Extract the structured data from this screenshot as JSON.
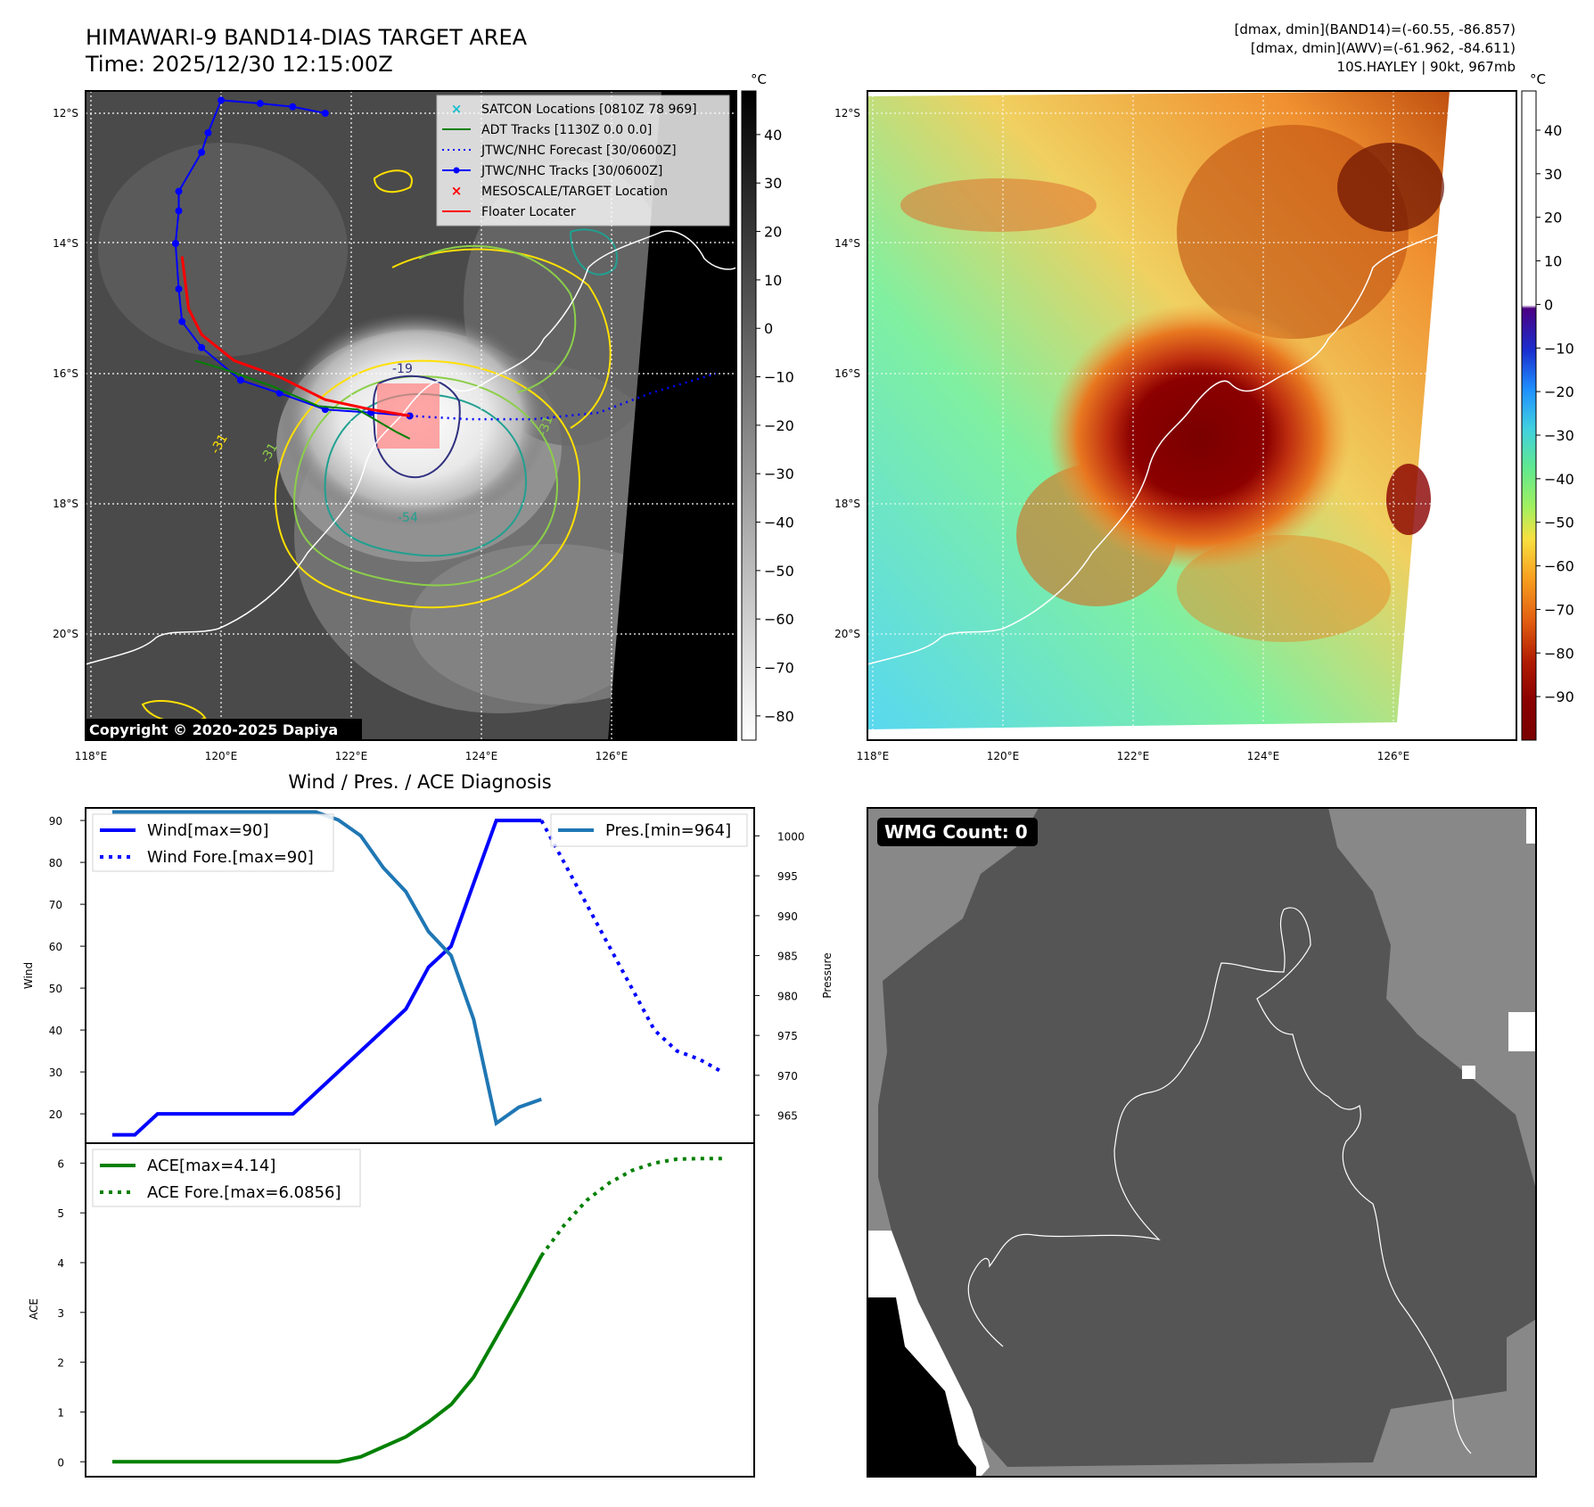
{
  "header": {
    "title_line1": "HIMAWARI-9 BAND14-DIAS TARGET AREA",
    "title_line2": "Time: 2025/12/30 12:15:00Z",
    "info_line1": "[dmax, dmin](BAND14)=(-60.55, -86.857)",
    "info_line2": "[dmax, dmin](AWV)=(-61.962, -84.611)",
    "info_line3": "10S.HAYLEY | 90kt, 967mb"
  },
  "maps": {
    "lat_ticks": [
      "12°S",
      "14°S",
      "16°S",
      "18°S",
      "20°S"
    ],
    "lon_ticks": [
      "118°E",
      "120°E",
      "122°E",
      "124°E",
      "126°E"
    ],
    "copyright": "Copyright © 2020-2025 Dapiya",
    "contour_labels": [
      "-31",
      "-31",
      "-54",
      "-19",
      "-31"
    ],
    "legend": [
      {
        "label": "SATCON Locations [0810Z 78 969]",
        "color": "#17becf",
        "kind": "x"
      },
      {
        "label": "ADT Tracks [1130Z 0.0 0.0]",
        "color": "#008000",
        "kind": "line"
      },
      {
        "label": "JTWC/NHC Forecast [30/0600Z]",
        "color": "#0000ff",
        "kind": "dotted"
      },
      {
        "label": "JTWC/NHC Tracks [30/0600Z]",
        "color": "#0000ff",
        "kind": "line-dot"
      },
      {
        "label": "MESOSCALE/TARGET Location",
        "color": "#ff0000",
        "kind": "x"
      },
      {
        "label": "Floater Locater",
        "color": "#ff0000",
        "kind": "line"
      }
    ],
    "jtwc_track": [
      [
        121.6,
        12.0
      ],
      [
        121.1,
        11.9
      ],
      [
        120.6,
        11.85
      ],
      [
        120.0,
        11.8
      ],
      [
        119.8,
        12.3
      ],
      [
        119.7,
        12.6
      ],
      [
        119.35,
        13.2
      ],
      [
        119.35,
        13.5
      ],
      [
        119.3,
        14.0
      ],
      [
        119.35,
        14.7
      ],
      [
        119.4,
        15.2
      ],
      [
        119.7,
        15.6
      ],
      [
        120.3,
        16.1
      ],
      [
        120.9,
        16.3
      ],
      [
        121.6,
        16.55
      ],
      [
        122.3,
        16.6
      ],
      [
        122.9,
        16.65
      ]
    ],
    "jtwc_forecast": [
      [
        122.9,
        16.65
      ],
      [
        123.8,
        16.7
      ],
      [
        124.8,
        16.7
      ],
      [
        125.8,
        16.6
      ],
      [
        126.6,
        16.3
      ],
      [
        127.6,
        16.0
      ]
    ],
    "floater_track": [
      [
        119.4,
        14.2
      ],
      [
        119.5,
        15.0
      ],
      [
        119.7,
        15.4
      ],
      [
        120.2,
        15.8
      ],
      [
        120.9,
        16.05
      ],
      [
        121.6,
        16.4
      ],
      [
        122.3,
        16.55
      ],
      [
        122.9,
        16.65
      ]
    ],
    "adt_track": [
      [
        119.6,
        15.8
      ],
      [
        120.1,
        15.95
      ],
      [
        120.8,
        16.2
      ],
      [
        121.5,
        16.5
      ],
      [
        122.1,
        16.55
      ],
      [
        122.7,
        16.9
      ],
      [
        122.9,
        17.0
      ]
    ]
  },
  "colorbar_bw": {
    "unit": "°C",
    "ticks": [
      "40",
      "30",
      "20",
      "10",
      "0",
      "−10",
      "−20",
      "−30",
      "−40",
      "−50",
      "−60",
      "−70",
      "−80"
    ],
    "range": [
      -85,
      49
    ]
  },
  "colorbar_color": {
    "unit": "°C",
    "ticks": [
      "40",
      "30",
      "20",
      "10",
      "0",
      "−10",
      "−20",
      "−30",
      "−40",
      "−50",
      "−60",
      "−70",
      "−80",
      "−90"
    ],
    "range": [
      -100,
      49
    ]
  },
  "wind_panel": {
    "title": "Wind / Pres. / ACE Diagnosis",
    "ylabel_left": "Wind",
    "ylabel_right": "Pressure",
    "wind_ticks": [
      "90",
      "80",
      "70",
      "60",
      "50",
      "40",
      "30",
      "20"
    ],
    "pressure_ticks": [
      "1000",
      "995",
      "990",
      "985",
      "980",
      "975",
      "970",
      "965"
    ],
    "legend_wind": "Wind[max=90]",
    "legend_wind_fore": "Wind Fore.[max=90]",
    "legend_pres": "Pres.[min=964]"
  },
  "ace_panel": {
    "ylabel": "ACE",
    "ticks": [
      "6",
      "5",
      "4",
      "3",
      "2",
      "1",
      "0"
    ],
    "legend_ace": "ACE[max=4.14]",
    "legend_ace_fore": "ACE Fore.[max=6.0856]"
  },
  "wmg_panel": {
    "label": "WMG Count: 0"
  },
  "chart_data": [
    {
      "type": "line",
      "title": "Wind / Pres. / ACE Diagnosis",
      "ylabel": "Wind",
      "y2label": "Pressure",
      "x": [
        0,
        1,
        2,
        3,
        4,
        5,
        6,
        7,
        8,
        9,
        10,
        11,
        12,
        13,
        14,
        15,
        16,
        17,
        18,
        19,
        20,
        21,
        22,
        23,
        24,
        25,
        26,
        27
      ],
      "ylim": [
        13,
        93
      ],
      "y2lim": [
        961.5,
        1003.5
      ],
      "series": [
        {
          "name": "Wind[max=90]",
          "axis": "left",
          "color": "#0000ff",
          "style": "solid",
          "x": [
            0,
            1,
            2,
            3,
            4,
            5,
            6,
            7,
            8,
            9,
            10,
            11,
            12,
            13,
            14,
            15,
            16,
            17,
            18,
            19
          ],
          "values": [
            15,
            15,
            20,
            20,
            20,
            20,
            20,
            20,
            20,
            25,
            30,
            35,
            40,
            45,
            55,
            60,
            75,
            90,
            90,
            90
          ]
        },
        {
          "name": "Wind Fore.[max=90]",
          "axis": "left",
          "color": "#0000ff",
          "style": "dotted",
          "x": [
            19,
            20,
            21,
            22,
            23,
            24,
            25,
            26,
            27
          ],
          "values": [
            90,
            80,
            70,
            60,
            50,
            40,
            35,
            33,
            30
          ]
        },
        {
          "name": "Pres.[min=964]",
          "axis": "right",
          "color": "#1f77b4",
          "style": "solid",
          "x": [
            0,
            1,
            2,
            3,
            4,
            5,
            6,
            7,
            8,
            9,
            10,
            11,
            12,
            13,
            14,
            15,
            16,
            17,
            18,
            19
          ],
          "values": [
            1003,
            1003,
            1003,
            1003,
            1003,
            1003,
            1003,
            1003,
            1003,
            1003,
            1002,
            1000,
            996,
            993,
            988,
            985,
            977,
            964,
            966,
            967
          ]
        }
      ]
    },
    {
      "type": "line",
      "ylabel": "ACE",
      "x": [
        0,
        1,
        2,
        3,
        4,
        5,
        6,
        7,
        8,
        9,
        10,
        11,
        12,
        13,
        14,
        15,
        16,
        17,
        18,
        19,
        20,
        21,
        22,
        23,
        24,
        25,
        26,
        27
      ],
      "ylim": [
        -0.3,
        6.4
      ],
      "series": [
        {
          "name": "ACE[max=4.14]",
          "color": "#008000",
          "style": "solid",
          "x": [
            0,
            1,
            2,
            3,
            4,
            5,
            6,
            7,
            8,
            9,
            10,
            11,
            12,
            13,
            14,
            15,
            16,
            17,
            18,
            19
          ],
          "values": [
            0,
            0,
            0,
            0,
            0,
            0,
            0,
            0,
            0,
            0,
            0,
            0.1,
            0.3,
            0.5,
            0.8,
            1.15,
            1.7,
            2.5,
            3.3,
            4.14
          ]
        },
        {
          "name": "ACE Fore.[max=6.0856]",
          "color": "#008000",
          "style": "dotted",
          "x": [
            19,
            20,
            21,
            22,
            23,
            24,
            25,
            26,
            27
          ],
          "values": [
            4.14,
            4.75,
            5.25,
            5.6,
            5.85,
            6.0,
            6.08,
            6.09,
            6.09
          ]
        }
      ]
    }
  ]
}
